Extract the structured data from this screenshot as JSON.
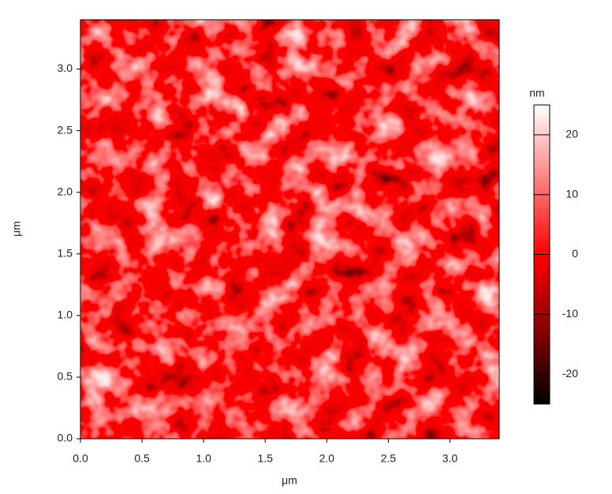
{
  "chart_data": {
    "type": "image",
    "xlabel": "μm",
    "ylabel": "μm",
    "xlim": [
      0,
      3.4
    ],
    "ylim": [
      0,
      3.4
    ],
    "xticks": [
      {
        "value": 0,
        "label": "0.0"
      },
      0.5,
      {
        "value": 1,
        "label": "1.0"
      },
      1.5,
      {
        "value": 2,
        "label": "2.0"
      },
      2.5,
      {
        "value": 3,
        "label": "3.0"
      }
    ],
    "yticks": [
      {
        "value": 0,
        "label": "0.0"
      },
      0.5,
      {
        "value": 1,
        "label": "1.0"
      },
      1.5,
      {
        "value": 2,
        "label": "2.0"
      },
      2.5,
      {
        "value": 3,
        "label": "3.0"
      }
    ],
    "colorbar": {
      "label": "nm",
      "clim": [
        -25,
        25
      ],
      "ticks": [
        -20,
        -10,
        0,
        10,
        20
      ]
    }
  }
}
